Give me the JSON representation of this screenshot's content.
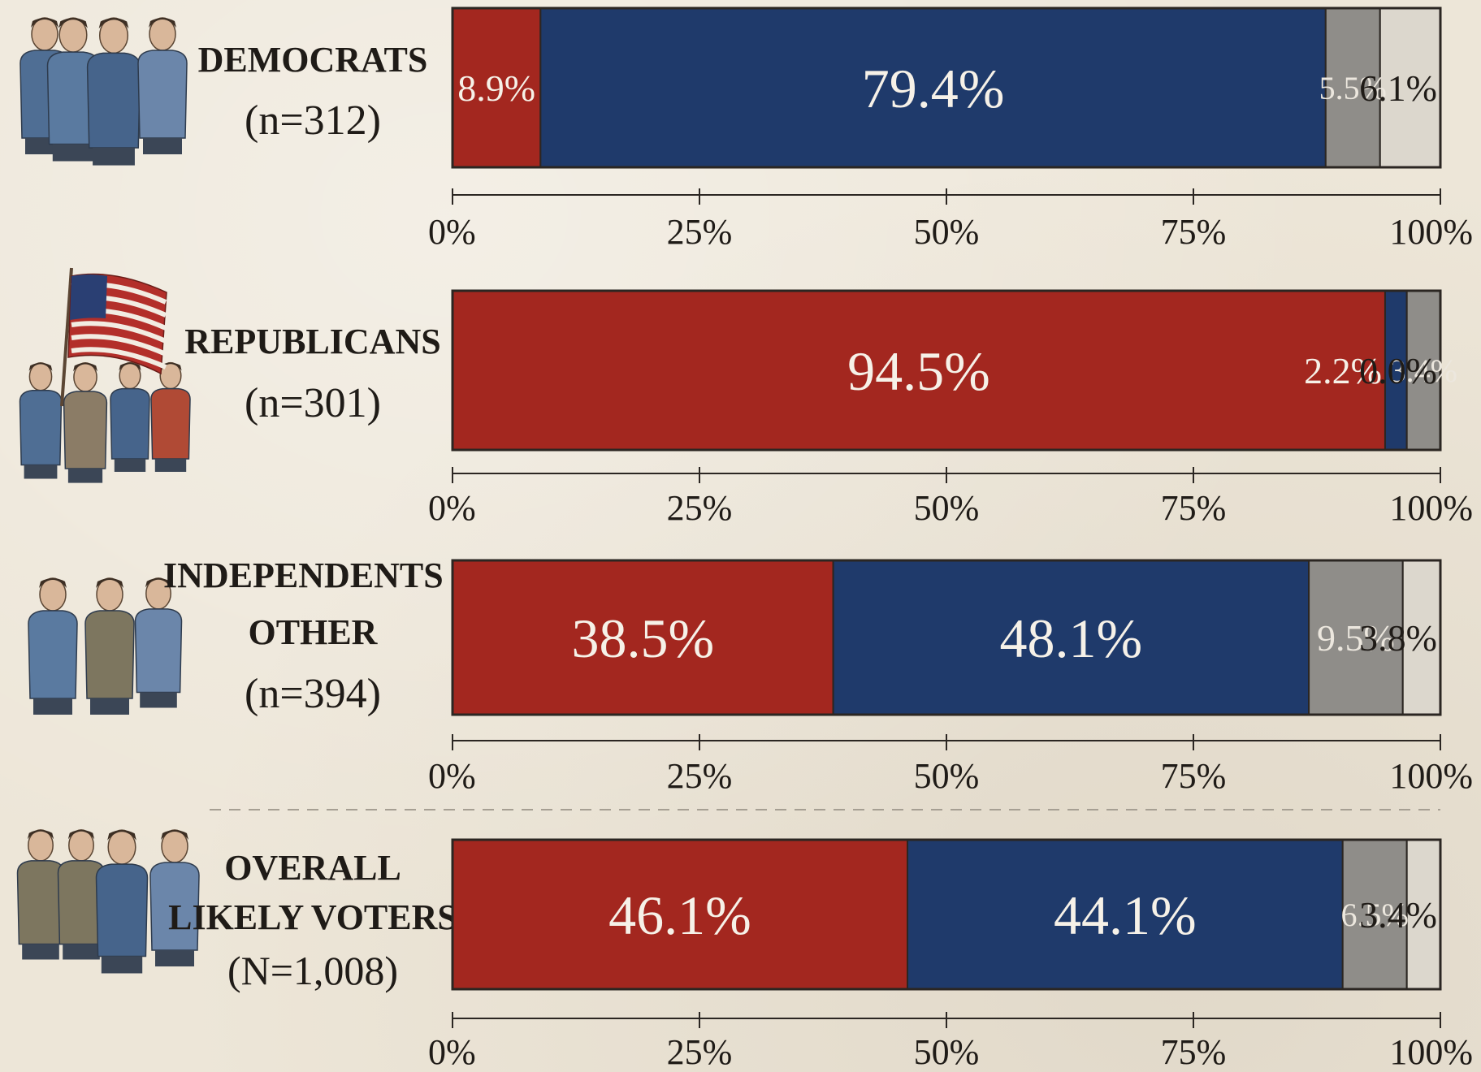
{
  "chart_data": {
    "type": "bar",
    "orientation": "horizontal",
    "stacked": true,
    "xlim": [
      0,
      100
    ],
    "ticks": [
      "0%",
      "25%",
      "50%",
      "75%",
      "100%"
    ],
    "legend": "none",
    "colors": [
      "#a3271f",
      "#1f3a6b",
      "#8f8d89",
      "#dcd7cd"
    ],
    "categories": [
      {
        "label_lines": [
          "DEMOCRATS"
        ],
        "n_label": "(n=312)",
        "values": [
          8.9,
          79.4,
          5.5,
          6.1
        ],
        "value_labels": [
          "8.9%",
          "79.4%",
          "5.5%",
          "6.1%"
        ]
      },
      {
        "label_lines": [
          "REPUBLICANS"
        ],
        "n_label": "(n=301)",
        "values": [
          94.5,
          2.2,
          3.4,
          0.0
        ],
        "value_labels": [
          "94.5%",
          "2.2%",
          "3.4%",
          "0.0%"
        ]
      },
      {
        "label_lines": [
          "INDEPENDENTS /",
          "OTHER"
        ],
        "n_label": "(n=394)",
        "values": [
          38.5,
          48.1,
          9.5,
          3.8
        ],
        "value_labels": [
          "38.5%",
          "48.1%",
          "9.5%",
          "3.8%"
        ]
      },
      {
        "label_lines": [
          "OVERALL",
          "LIKELY VOTERS"
        ],
        "n_label": "(N=1,008)",
        "values": [
          46.1,
          44.1,
          6.5,
          3.4
        ],
        "value_labels": [
          "46.1%",
          "44.1%",
          "6.5%",
          "3.4%"
        ]
      }
    ]
  }
}
